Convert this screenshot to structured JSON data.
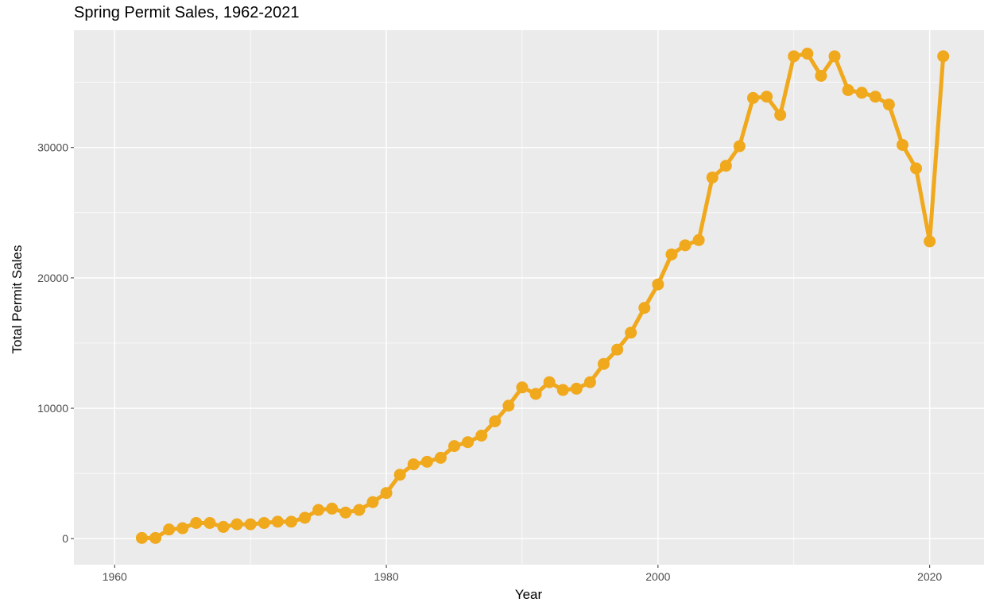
{
  "chart_data": {
    "type": "line",
    "title": "Spring Permit Sales, 1962-2021",
    "xlabel": "Year",
    "ylabel": "Total Permit Sales",
    "xlim": [
      1957,
      2024
    ],
    "ylim": [
      -2000,
      39000
    ],
    "x_ticks": [
      1960,
      1980,
      2000,
      2020
    ],
    "x_ticks_minor": [
      1970,
      1990,
      2010
    ],
    "y_ticks": [
      0,
      10000,
      20000,
      30000
    ],
    "y_ticks_minor": [
      5000,
      15000,
      25000,
      35000
    ],
    "x_tick_labels": [
      "1960",
      "1980",
      "2000",
      "2020"
    ],
    "y_tick_labels": [
      "0",
      "10000",
      "20000",
      "30000"
    ],
    "grid": true,
    "legend": "none",
    "panel_background": "#ebebeb",
    "grid_color": "#ffffff",
    "line_color": "#f0a81c",
    "series": [
      {
        "x": [
          1962,
          1963,
          1964,
          1965,
          1966,
          1967,
          1968,
          1969,
          1970,
          1971,
          1972,
          1973,
          1974,
          1975,
          1976,
          1977,
          1978,
          1979,
          1980,
          1981,
          1982,
          1983,
          1984,
          1985,
          1986,
          1987,
          1988,
          1989,
          1990,
          1991,
          1992,
          1993,
          1994,
          1995,
          1996,
          1997,
          1998,
          1999,
          2000,
          2001,
          2002,
          2003,
          2004,
          2005,
          2006,
          2007,
          2008,
          2009,
          2010,
          2011,
          2012,
          2013,
          2014,
          2015,
          2016,
          2017,
          2018,
          2019,
          2020,
          2021
        ],
        "values": [
          50,
          50,
          700,
          800,
          1200,
          1200,
          900,
          1100,
          1100,
          1200,
          1300,
          1300,
          1600,
          2200,
          2300,
          2000,
          2200,
          2800,
          3500,
          4900,
          5700,
          5900,
          6200,
          7100,
          7400,
          7900,
          9000,
          10200,
          11600,
          11100,
          12000,
          11400,
          11500,
          12000,
          13400,
          14500,
          15800,
          17700,
          19500,
          21800,
          22500,
          22900,
          27700,
          28600,
          30100,
          33800,
          33900,
          32500,
          37000,
          37200,
          35500,
          37000,
          34400,
          34200,
          33900,
          33300,
          30200,
          28400,
          22800,
          37000
        ]
      }
    ]
  }
}
